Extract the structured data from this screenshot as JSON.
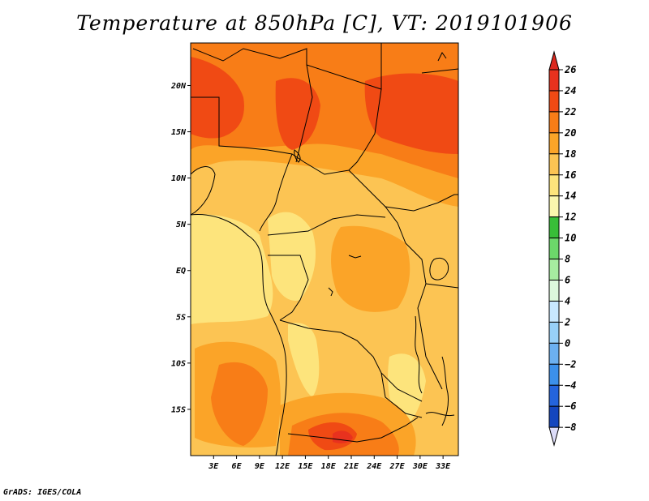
{
  "title": "Temperature at 850hPa [C], VT: 2019101906",
  "credit": "GrADS: IGES/COLA",
  "map": {
    "variable": "Temperature at 850hPa",
    "units": "C",
    "valid_time": "2019101906",
    "lat_labels": [
      {
        "lat": 20,
        "label": "20N"
      },
      {
        "lat": 15,
        "label": "15N"
      },
      {
        "lat": 10,
        "label": "10N"
      },
      {
        "lat": 5,
        "label": "5N"
      },
      {
        "lat": 0,
        "label": "EQ"
      },
      {
        "lat": -5,
        "label": "5S"
      },
      {
        "lat": -10,
        "label": "10S"
      },
      {
        "lat": -15,
        "label": "15S"
      }
    ],
    "lon_labels": [
      {
        "lon": 3,
        "label": "3E"
      },
      {
        "lon": 6,
        "label": "6E"
      },
      {
        "lon": 9,
        "label": "9E"
      },
      {
        "lon": 12,
        "label": "12E"
      },
      {
        "lon": 15,
        "label": "15E"
      },
      {
        "lon": 18,
        "label": "18E"
      },
      {
        "lon": 21,
        "label": "21E"
      },
      {
        "lon": 24,
        "label": "24E"
      },
      {
        "lon": 27,
        "label": "27E"
      },
      {
        "lon": 30,
        "label": "30E"
      },
      {
        "lon": 33,
        "label": "33E"
      }
    ]
  },
  "colorbar": {
    "levels": [
      {
        "value": 26,
        "label": "26",
        "color": "#e8321e"
      },
      {
        "value": 24,
        "label": "24",
        "color": "#f04a14"
      },
      {
        "value": 22,
        "label": "22",
        "color": "#f87d17"
      },
      {
        "value": 20,
        "label": "20",
        "color": "#fba428"
      },
      {
        "value": 18,
        "label": "18",
        "color": "#fcc453"
      },
      {
        "value": 16,
        "label": "16",
        "color": "#fde47c"
      },
      {
        "value": 14,
        "label": "14",
        "color": "#faf6ae"
      },
      {
        "value": 12,
        "label": "12",
        "color": "#38be38"
      },
      {
        "value": 10,
        "label": "10",
        "color": "#6cd86a"
      },
      {
        "value": 8,
        "label": "8",
        "color": "#a6eca0"
      },
      {
        "value": 6,
        "label": "6",
        "color": "#dcf8dc"
      },
      {
        "value": 4,
        "label": "4",
        "color": "#c8e8ff"
      },
      {
        "value": 2,
        "label": "2",
        "color": "#98d0f8"
      },
      {
        "value": 0,
        "label": "0",
        "color": "#6cb0f0"
      },
      {
        "value": -2,
        "label": "−2",
        "color": "#3c90ea"
      },
      {
        "value": -4,
        "label": "−4",
        "color": "#2464dc"
      },
      {
        "value": -6,
        "label": "−6",
        "color": "#1446be"
      },
      {
        "value": -8,
        "label": "−8",
        "color": "#0a2898"
      }
    ],
    "top_triangle_color": "#dc281e",
    "bottom_triangle_color": "#dcdcf8",
    "bottom_cell_color": "#0a1478"
  }
}
